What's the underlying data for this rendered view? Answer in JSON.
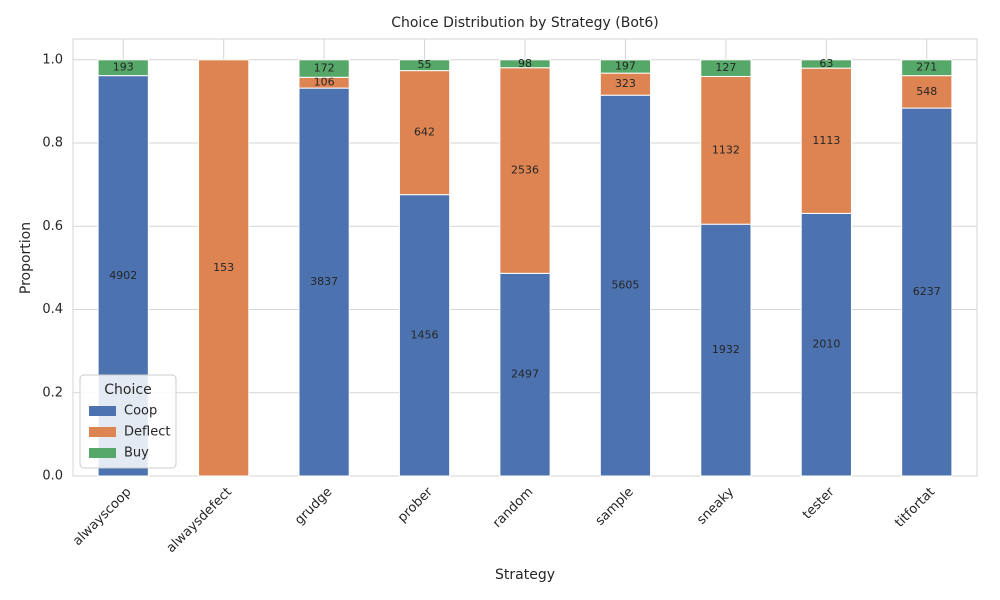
{
  "chart_data": {
    "type": "stacked_bar",
    "title": "Choice Distribution by Strategy (Bot6)",
    "x_label": "Strategy",
    "y_label": "Proportion",
    "categories": [
      "alwayscoop",
      "alwaysdefect",
      "grudge",
      "prober",
      "random",
      "sample",
      "sneaky",
      "tester",
      "titfortat"
    ],
    "series": [
      {
        "name": "Coop",
        "color": "#4c72b0",
        "values": [
          0.962,
          0,
          0.932,
          0.676,
          0.487,
          0.915,
          0.605,
          0.631,
          0.884
        ],
        "counts": [
          4902,
          null,
          3837,
          1456,
          2497,
          5605,
          1932,
          2010,
          6237
        ]
      },
      {
        "name": "Deflect",
        "color": "#dd8452",
        "values": [
          0,
          1.0,
          0.026,
          0.298,
          0.494,
          0.053,
          0.355,
          0.349,
          0.078
        ],
        "counts": [
          null,
          153,
          106,
          642,
          2536,
          323,
          1132,
          1113,
          548
        ]
      },
      {
        "name": "Buy",
        "color": "#55a868",
        "values": [
          0.038,
          0,
          0.042,
          0.026,
          0.019,
          0.032,
          0.04,
          0.02,
          0.038
        ],
        "counts": [
          193,
          null,
          172,
          55,
          98,
          197,
          127,
          63,
          271
        ]
      }
    ],
    "ylim": [
      0,
      1.05
    ],
    "yticks": [
      {
        "value": 0,
        "label": "0.0"
      },
      0.2,
      0.4,
      0.6,
      0.8,
      {
        "value": 1,
        "label": "1.0"
      }
    ],
    "grid": true,
    "legend_title": "Choice",
    "legend": "lower left"
  }
}
